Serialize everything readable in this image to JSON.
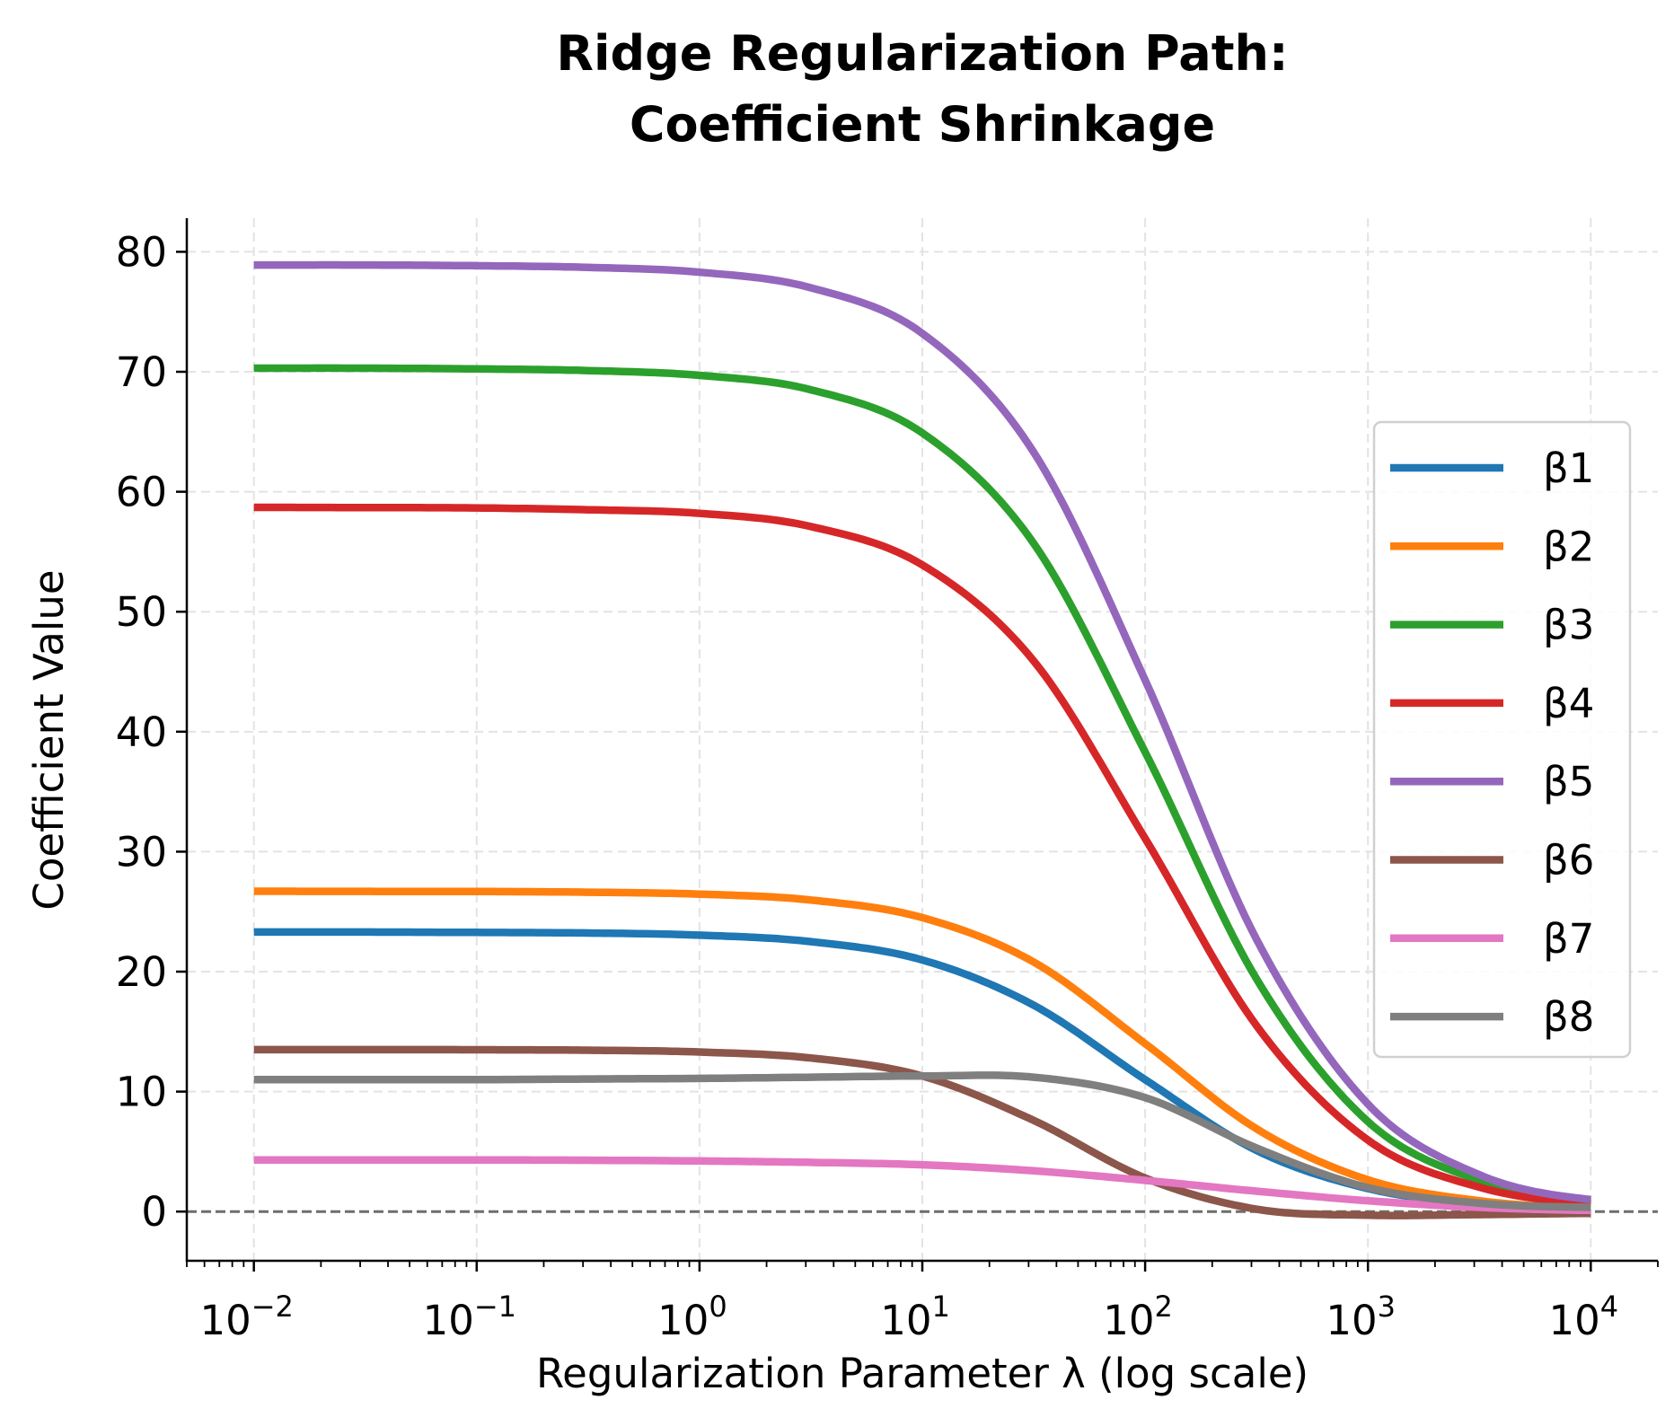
{
  "chart_data": {
    "type": "line",
    "title_line1": "Ridge Regularization Path:",
    "title_line2": "Coefficient Shrinkage",
    "xlabel": "Regularization Parameter λ (log scale)",
    "ylabel": "Coefficient Value",
    "xscale": "log",
    "xlim": [
      0.005,
      20000
    ],
    "ylim": [
      -4.1,
      82.8
    ],
    "xticks": [
      {
        "value": 0.01,
        "base": "10",
        "exp": "−2"
      },
      {
        "value": 0.1,
        "base": "10",
        "exp": "−1"
      },
      {
        "value": 1,
        "base": "10",
        "exp": "0"
      },
      {
        "value": 10,
        "base": "10",
        "exp": "1"
      },
      {
        "value": 100,
        "base": "10",
        "exp": "2"
      },
      {
        "value": 1000,
        "base": "10",
        "exp": "3"
      },
      {
        "value": 10000,
        "base": "10",
        "exp": "4"
      }
    ],
    "yticks": [
      {
        "value": 0,
        "label": "0"
      },
      {
        "value": 10,
        "label": "10"
      },
      {
        "value": 20,
        "label": "20"
      },
      {
        "value": 30,
        "label": "30"
      },
      {
        "value": 40,
        "label": "40"
      },
      {
        "value": 50,
        "label": "50"
      },
      {
        "value": 60,
        "label": "60"
      },
      {
        "value": 70,
        "label": "70"
      },
      {
        "value": 80,
        "label": "80"
      }
    ],
    "grid": true,
    "reference_line": {
      "y": 0,
      "style": "dashed",
      "color": "#6e6e6e"
    },
    "legend_position": "center-right",
    "x": [
      0.01,
      0.0316,
      0.1,
      0.316,
      1,
      3.16,
      10,
      31.6,
      100,
      316,
      1000,
      3162,
      10000
    ],
    "series": [
      {
        "name": "β1",
        "color": "#1f77b4",
        "values": [
          23.3,
          23.3,
          23.27,
          23.22,
          23.04,
          22.5,
          20.97,
          17.2,
          11.0,
          5.1,
          1.92,
          0.64,
          0.21
        ]
      },
      {
        "name": "β2",
        "color": "#ff7f0e",
        "values": [
          26.7,
          26.69,
          26.68,
          26.62,
          26.46,
          25.97,
          24.5,
          20.8,
          14.0,
          6.9,
          2.65,
          0.9,
          0.29
        ]
      },
      {
        "name": "β3",
        "color": "#2ca02c",
        "values": [
          70.3,
          70.3,
          70.24,
          70.1,
          69.7,
          68.5,
          64.9,
          55.7,
          38.3,
          19.4,
          7.5,
          2.6,
          0.83
        ]
      },
      {
        "name": "β4",
        "color": "#d62728",
        "values": [
          58.7,
          58.68,
          58.65,
          58.5,
          58.2,
          57.1,
          53.9,
          45.9,
          31.1,
          15.5,
          5.96,
          2.03,
          0.66
        ]
      },
      {
        "name": "β5",
        "color": "#9467bd",
        "values": [
          78.9,
          78.9,
          78.84,
          78.7,
          78.3,
          77.0,
          73.2,
          63.3,
          44.3,
          22.7,
          8.96,
          3.07,
          1.0
        ]
      },
      {
        "name": "β6",
        "color": "#8c564b",
        "values": [
          13.5,
          13.5,
          13.49,
          13.45,
          13.3,
          12.8,
          11.3,
          7.6,
          2.8,
          0.2,
          -0.3,
          -0.25,
          -0.15
        ]
      },
      {
        "name": "β7",
        "color": "#e377c2",
        "values": [
          4.3,
          4.3,
          4.3,
          4.28,
          4.22,
          4.1,
          3.9,
          3.4,
          2.6,
          1.7,
          0.9,
          0.35,
          0.1
        ]
      },
      {
        "name": "β8",
        "color": "#7f7f7f",
        "values": [
          11.0,
          11.0,
          11.0,
          11.05,
          11.1,
          11.2,
          11.3,
          11.2,
          9.5,
          5.3,
          2.0,
          0.7,
          0.35
        ]
      }
    ]
  }
}
